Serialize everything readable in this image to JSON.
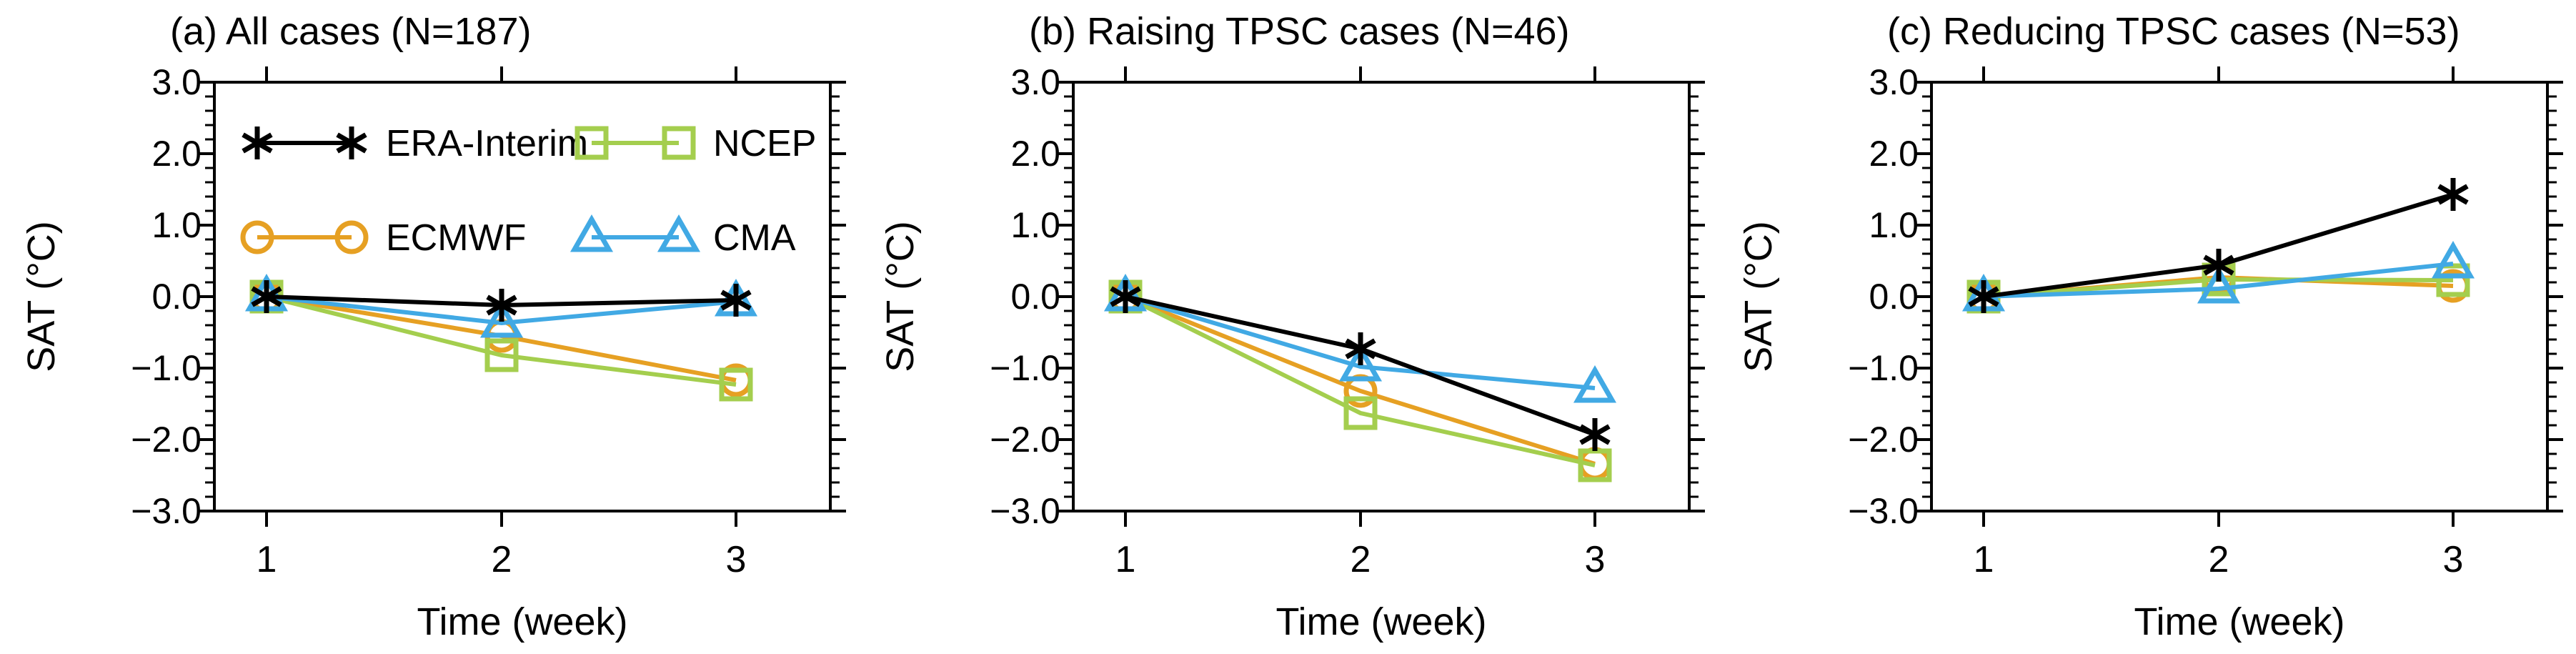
{
  "figure": {
    "background": "#ffffff",
    "ylabel": "SAT (°C)",
    "xlabel": "Time (week)",
    "series_colors": {
      "ERA-Interim": "#000000",
      "ECMWF": "#E6A023",
      "NCEP": "#A4CE4E",
      "CMA": "#41A9E4"
    },
    "series_markers": {
      "ERA-Interim": "asterisk",
      "ECMWF": "circle",
      "NCEP": "square",
      "CMA": "triangle"
    },
    "legend": {
      "columns": [
        [
          "ERA-Interim",
          "ECMWF"
        ],
        [
          "NCEP",
          "CMA"
        ]
      ],
      "location": "upper-left-of-first-panel"
    }
  },
  "chart_data": [
    {
      "type": "line",
      "title": "(a) All cases (N=187)",
      "xlabel": "Time (week)",
      "ylabel": "SAT (°C)",
      "x": [
        1,
        2,
        3
      ],
      "xtick_labels": [
        "1",
        "2",
        "3"
      ],
      "ylim": [
        -3.0,
        3.0
      ],
      "ytick_values": [
        3,
        2,
        1,
        0,
        -1,
        -2,
        -3
      ],
      "ytick_labels": [
        "3.0",
        "2.0",
        "1.0",
        "0.0",
        "−1.0",
        "−2.0",
        "−3.0"
      ],
      "yminor_interval": 0.2,
      "grid": "off",
      "legend_visible": true,
      "series": [
        {
          "name": "ERA-Interim",
          "color": "#000000",
          "marker": "asterisk",
          "values": [
            0.0,
            -0.12,
            -0.05
          ]
        },
        {
          "name": "ECMWF",
          "color": "#E6A023",
          "marker": "circle",
          "values": [
            0.0,
            -0.55,
            -1.17
          ]
        },
        {
          "name": "NCEP",
          "color": "#A4CE4E",
          "marker": "square",
          "values": [
            0.0,
            -0.82,
            -1.23
          ]
        },
        {
          "name": "CMA",
          "color": "#41A9E4",
          "marker": "triangle",
          "values": [
            0.0,
            -0.37,
            -0.07
          ]
        }
      ]
    },
    {
      "type": "line",
      "title": "(b) Raising TPSC cases (N=46)",
      "xlabel": "Time (week)",
      "ylabel": "SAT (°C)",
      "x": [
        1,
        2,
        3
      ],
      "xtick_labels": [
        "1",
        "2",
        "3"
      ],
      "ylim": [
        -3.0,
        3.0
      ],
      "ytick_values": [
        3,
        2,
        1,
        0,
        -1,
        -2,
        -3
      ],
      "ytick_labels": [
        "3.0",
        "2.0",
        "1.0",
        "0.0",
        "−1.0",
        "−2.0",
        "−3.0"
      ],
      "yminor_interval": 0.2,
      "grid": "off",
      "legend_visible": false,
      "series": [
        {
          "name": "ERA-Interim",
          "color": "#000000",
          "marker": "asterisk",
          "values": [
            0.0,
            -0.73,
            -1.93
          ]
        },
        {
          "name": "ECMWF",
          "color": "#E6A023",
          "marker": "circle",
          "values": [
            0.0,
            -1.32,
            -2.34
          ]
        },
        {
          "name": "NCEP",
          "color": "#A4CE4E",
          "marker": "square",
          "values": [
            0.0,
            -1.63,
            -2.36
          ]
        },
        {
          "name": "CMA",
          "color": "#41A9E4",
          "marker": "triangle",
          "values": [
            0.0,
            -0.98,
            -1.28
          ]
        }
      ]
    },
    {
      "type": "line",
      "title": "(c) Reducing TPSC cases (N=53)",
      "xlabel": "Time (week)",
      "ylabel": "SAT (°C)",
      "x": [
        1,
        2,
        3
      ],
      "xtick_labels": [
        "1",
        "2",
        "3"
      ],
      "ylim": [
        -3.0,
        3.0
      ],
      "ytick_values": [
        3,
        2,
        1,
        0,
        -1,
        -2,
        -3
      ],
      "ytick_labels": [
        "3.0",
        "2.0",
        "1.0",
        "0.0",
        "−1.0",
        "−2.0",
        "−3.0"
      ],
      "yminor_interval": 0.2,
      "grid": "off",
      "legend_visible": false,
      "series": [
        {
          "name": "ERA-Interim",
          "color": "#000000",
          "marker": "asterisk",
          "values": [
            0.0,
            0.44,
            1.43
          ]
        },
        {
          "name": "ECMWF",
          "color": "#E6A023",
          "marker": "circle",
          "values": [
            0.0,
            0.27,
            0.15
          ]
        },
        {
          "name": "NCEP",
          "color": "#A4CE4E",
          "marker": "square",
          "values": [
            0.0,
            0.24,
            0.23
          ]
        },
        {
          "name": "CMA",
          "color": "#41A9E4",
          "marker": "triangle",
          "values": [
            0.0,
            0.11,
            0.46
          ]
        }
      ]
    }
  ]
}
